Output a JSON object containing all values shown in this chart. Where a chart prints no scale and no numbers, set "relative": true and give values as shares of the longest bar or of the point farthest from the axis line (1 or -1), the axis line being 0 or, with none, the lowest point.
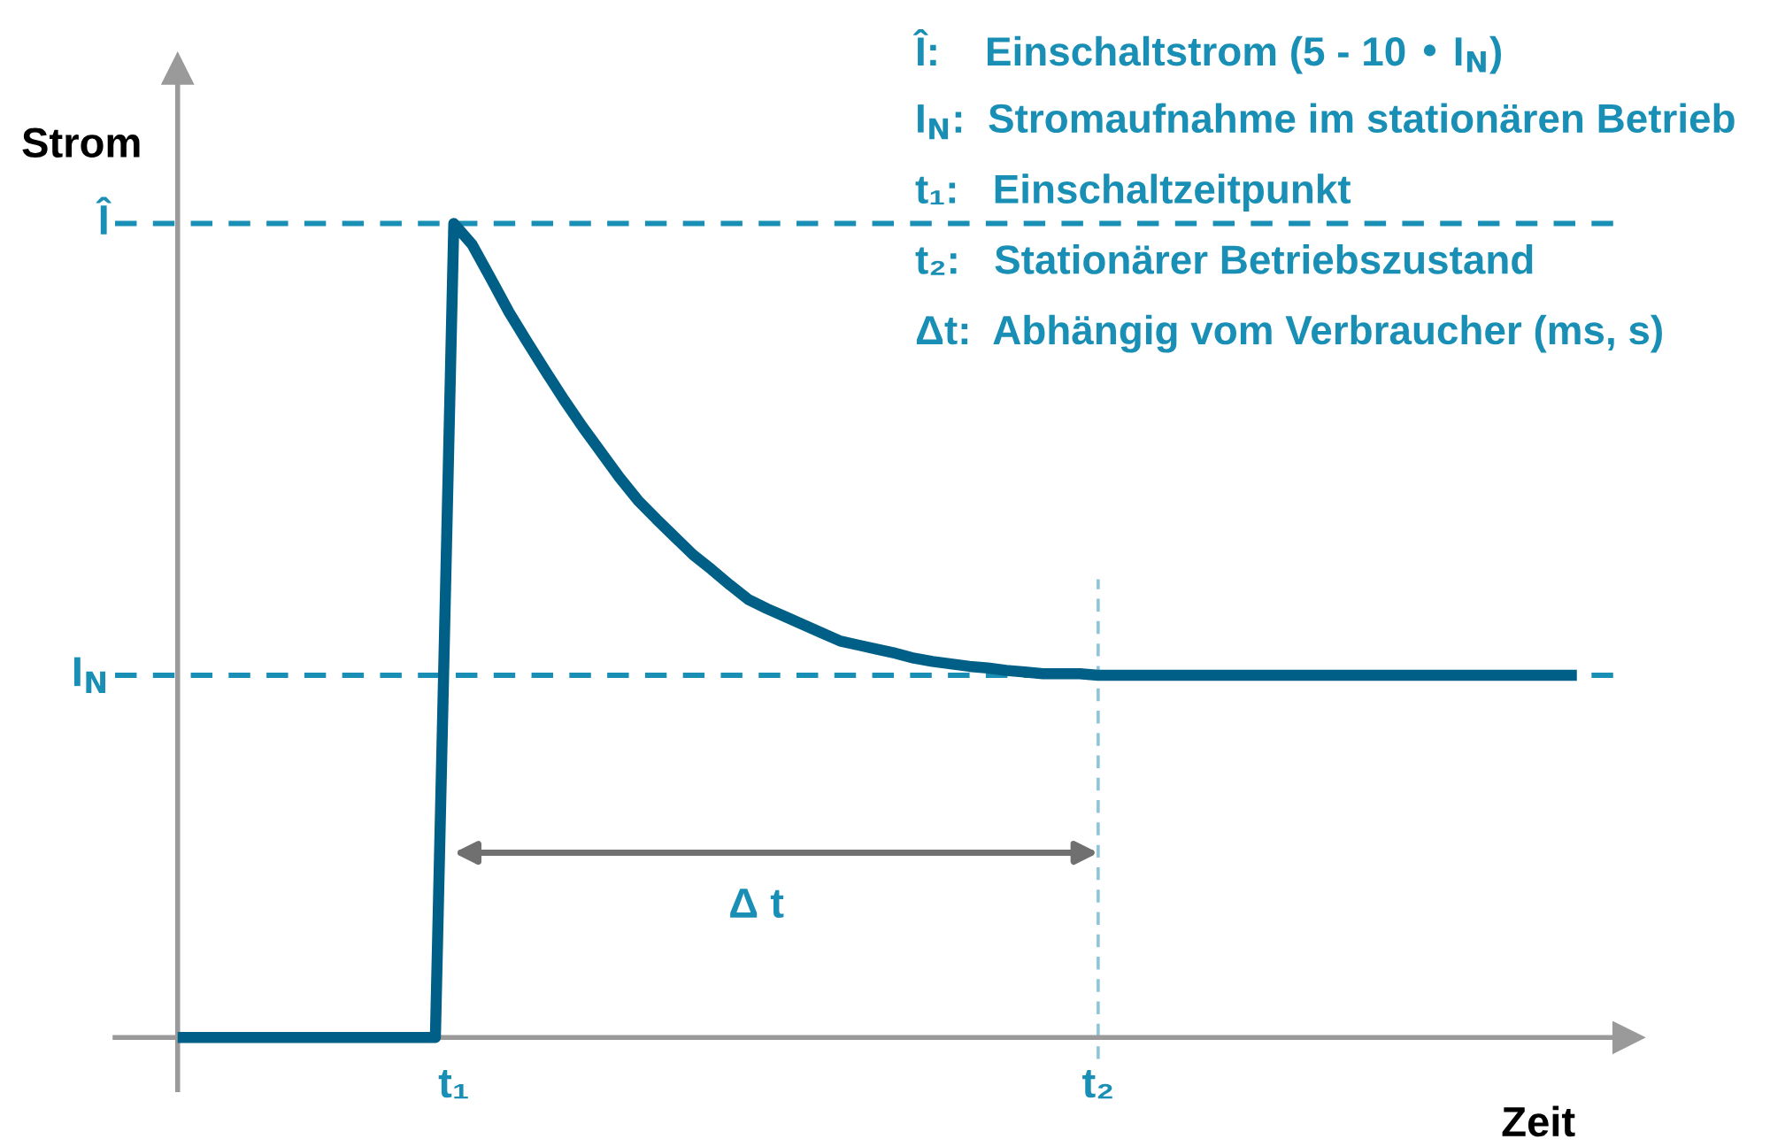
{
  "chart_data": {
    "type": "line",
    "relative": true,
    "xlabel": "Zeit",
    "ylabel": "Strom",
    "categories": [
      null,
      null,
      null,
      null,
      null,
      null,
      null,
      null,
      null,
      null,
      null,
      null,
      null,
      null,
      null,
      "t₁",
      null,
      null,
      null,
      null,
      null,
      null,
      null,
      null,
      null,
      null,
      null,
      null,
      null,
      null,
      null,
      null,
      null,
      null,
      null,
      null,
      null,
      null,
      null,
      null,
      null,
      null,
      null,
      null,
      null,
      null,
      null,
      null,
      null,
      null,
      "t₂",
      null,
      null,
      null,
      null,
      null,
      null,
      null,
      null,
      null,
      null,
      null,
      null,
      null,
      null,
      null,
      null,
      null,
      null,
      null,
      null,
      null,
      null,
      null,
      null,
      null,
      null
    ],
    "series": [
      {
        "color": "#005f86",
        "values": [
          0,
          0,
          0,
          0,
          0,
          0,
          0,
          0,
          0,
          0,
          0,
          0,
          0,
          0,
          0,
          1,
          0.974,
          0.933,
          0.891,
          0.854,
          0.818,
          0.783,
          0.75,
          0.719,
          0.688,
          0.66,
          0.637,
          0.615,
          0.593,
          0.575,
          0.556,
          0.538,
          0.527,
          0.517,
          0.507,
          0.497,
          0.487,
          0.482,
          0.477,
          0.472,
          0.466,
          0.462,
          0.459,
          0.456,
          0.454,
          0.451,
          0.449,
          0.447,
          0.447,
          0.447,
          0.445,
          0.445,
          0.445,
          0.445,
          0.445,
          0.445,
          0.445,
          0.445,
          0.445,
          0.445,
          0.445,
          0.445,
          0.445,
          0.445,
          0.445,
          0.445,
          0.445,
          0.445,
          0.445,
          0.445,
          0.445,
          0.445,
          0.445,
          0.445,
          0.445,
          0.445,
          0.445
        ]
      }
    ],
    "ref_lines": [
      {
        "axis": "y",
        "value": 1,
        "label": "Î",
        "color": "#1a8fb5",
        "line_style": "dashed"
      },
      {
        "axis": "y",
        "value": 0.445,
        "label": "I$_{N}$",
        "color": "#1a8fb5",
        "line_style": "dashed"
      },
      {
        "axis": "x",
        "value": "t₂",
        "color": "#8cc6dc",
        "line_style": "dashed"
      }
    ],
    "annotations": [
      "Î:    Einschaltstrom (5 - 10 • I$_{N}$)",
      "I$_{N}$:  Stromaufnahme im stationären Betrieb",
      "t₁:   Einschaltzeitpunkt",
      "t₂:   Stationärer Betriebszustand",
      "Δt:  Abhängig vom Verbraucher (ms, s)",
      "Δ t"
    ],
    "grid": false
  }
}
